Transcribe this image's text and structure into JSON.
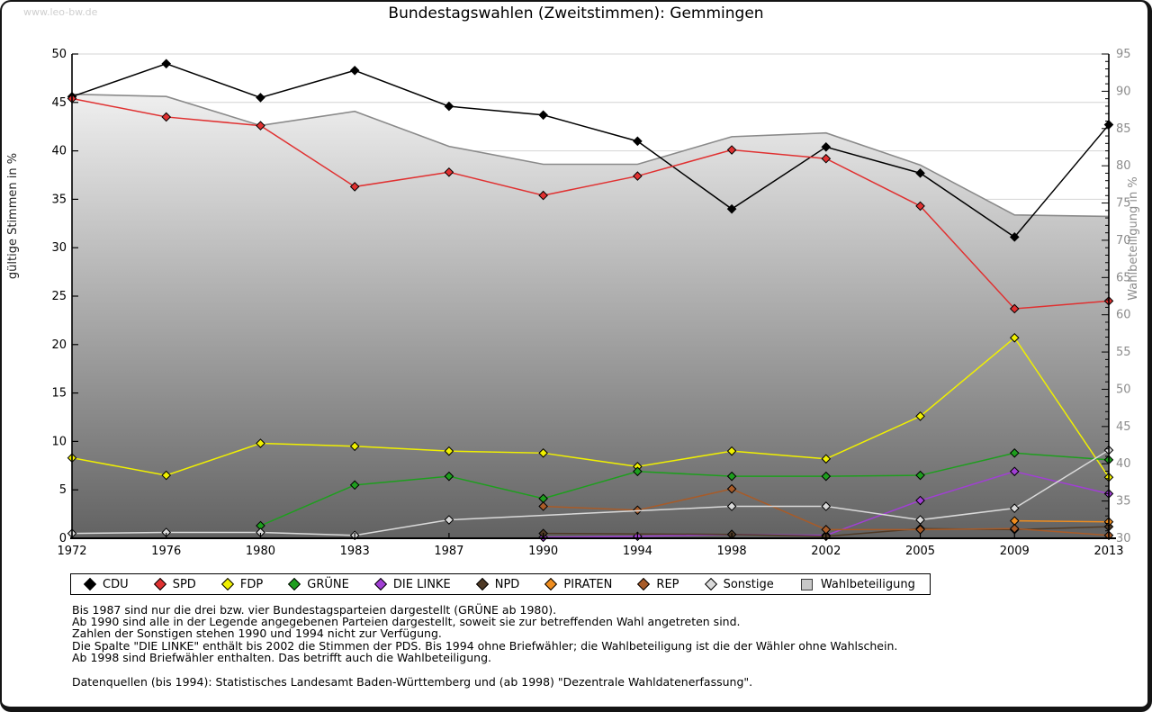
{
  "page": {
    "watermark": "www.leo-bw.de",
    "title": "Bundestagswahlen (Zweitstimmen): Gemmingen"
  },
  "notes": [
    "Bis 1987 sind nur die drei bzw. vier Bundestagsparteien dargestellt (GRÜNE ab 1980).",
    "Ab 1990 sind alle in der Legende angegebenen Parteien dargestellt, soweit sie zur betreffenden Wahl angetreten sind.",
    "Zahlen der Sonstigen stehen 1990 und 1994 nicht zur Verfügung.",
    "Die Spalte \"DIE LINKE\" enthält bis 2002 die Stimmen der PDS. Bis 1994 ohne Briefwähler; die Wahlbeteiligung ist die der Wähler ohne Wahlschein.",
    "Ab 1998 sind Briefwähler enthalten. Das betrifft auch die Wahlbeteiligung."
  ],
  "source": "Datenquellen (bis 1994): Statistisches Landesamt Baden-Württemberg und (ab 1998) \"Dezentrale Wahldatenerfassung\".",
  "chart_data": {
    "type": "line",
    "title": "Bundestagswahlen (Zweitstimmen): Gemmingen",
    "x_categories": [
      1972,
      1976,
      1980,
      1983,
      1987,
      1990,
      1994,
      1998,
      2002,
      2005,
      2009,
      2013
    ],
    "axes": {
      "left": {
        "label": "gültige Stimmen in %",
        "min": 0,
        "max": 50,
        "step": 5,
        "text_color": "#000000"
      },
      "right": {
        "label": "Wahlbeteiligung in %",
        "min": 30,
        "max": 95,
        "step": 5,
        "minor_step": 1,
        "text_color": "#8c8c8c"
      }
    },
    "grid": true,
    "legend_position": "bottom",
    "series": [
      {
        "name": "CDU",
        "color": "#000000",
        "marker": "diamond",
        "axis": "left",
        "values": [
          45.6,
          49.0,
          45.5,
          48.3,
          44.6,
          43.7,
          41.0,
          34.0,
          40.4,
          37.7,
          31.1,
          42.7
        ]
      },
      {
        "name": "SPD",
        "color": "#e03131",
        "marker": "diamond",
        "axis": "left",
        "values": [
          45.4,
          43.5,
          42.6,
          36.3,
          37.8,
          35.4,
          37.4,
          40.1,
          39.2,
          34.3,
          23.7,
          24.5
        ]
      },
      {
        "name": "FDP",
        "color": "#f0f000",
        "marker": "diamond",
        "axis": "left",
        "values": [
          8.3,
          6.5,
          9.8,
          9.5,
          9.0,
          8.8,
          7.4,
          9.0,
          8.2,
          12.6,
          20.7,
          6.3
        ]
      },
      {
        "name": "GRÜNE",
        "color": "#1e9e1e",
        "marker": "diamond",
        "axis": "left",
        "values": [
          null,
          null,
          1.3,
          5.5,
          6.4,
          4.1,
          6.9,
          6.4,
          6.4,
          6.5,
          8.8,
          8.1
        ]
      },
      {
        "name": "DIE LINKE",
        "color": "#a13fd4",
        "marker": "diamond",
        "axis": "left",
        "values": [
          null,
          null,
          null,
          null,
          null,
          0.1,
          0.2,
          0.4,
          0.3,
          3.9,
          6.9,
          4.6
        ]
      },
      {
        "name": "NPD",
        "color": "#4f3a26",
        "marker": "diamond",
        "axis": "left",
        "values": [
          null,
          null,
          null,
          null,
          null,
          0.5,
          null,
          0.4,
          0.2,
          1.0,
          0.9,
          1.2
        ]
      },
      {
        "name": "PIRATEN",
        "color": "#ef8d1f",
        "marker": "diamond",
        "axis": "left",
        "values": [
          null,
          null,
          null,
          null,
          null,
          null,
          null,
          null,
          null,
          null,
          1.8,
          1.7
        ]
      },
      {
        "name": "REP",
        "color": "#a85b28",
        "marker": "diamond",
        "axis": "left",
        "values": [
          null,
          null,
          null,
          null,
          null,
          3.3,
          2.9,
          5.1,
          0.9,
          0.9,
          1.0,
          0.3
        ]
      },
      {
        "name": "Sonstige",
        "color": "#dadada",
        "marker": "diamond",
        "axis": "left",
        "values": [
          0.5,
          0.6,
          0.6,
          0.3,
          1.9,
          null,
          null,
          3.3,
          3.3,
          1.9,
          3.1,
          9.1
        ]
      },
      {
        "name": "Wahlbeteiligung",
        "color": "#8a8a8a",
        "marker": "square",
        "axis": "right",
        "type": "area",
        "fill_top": "#fcfcfc",
        "fill_bottom": "#626262",
        "values": [
          89.6,
          89.3,
          85.4,
          87.3,
          82.6,
          80.2,
          80.2,
          83.9,
          84.4,
          80.1,
          73.4,
          73.2
        ]
      }
    ]
  }
}
